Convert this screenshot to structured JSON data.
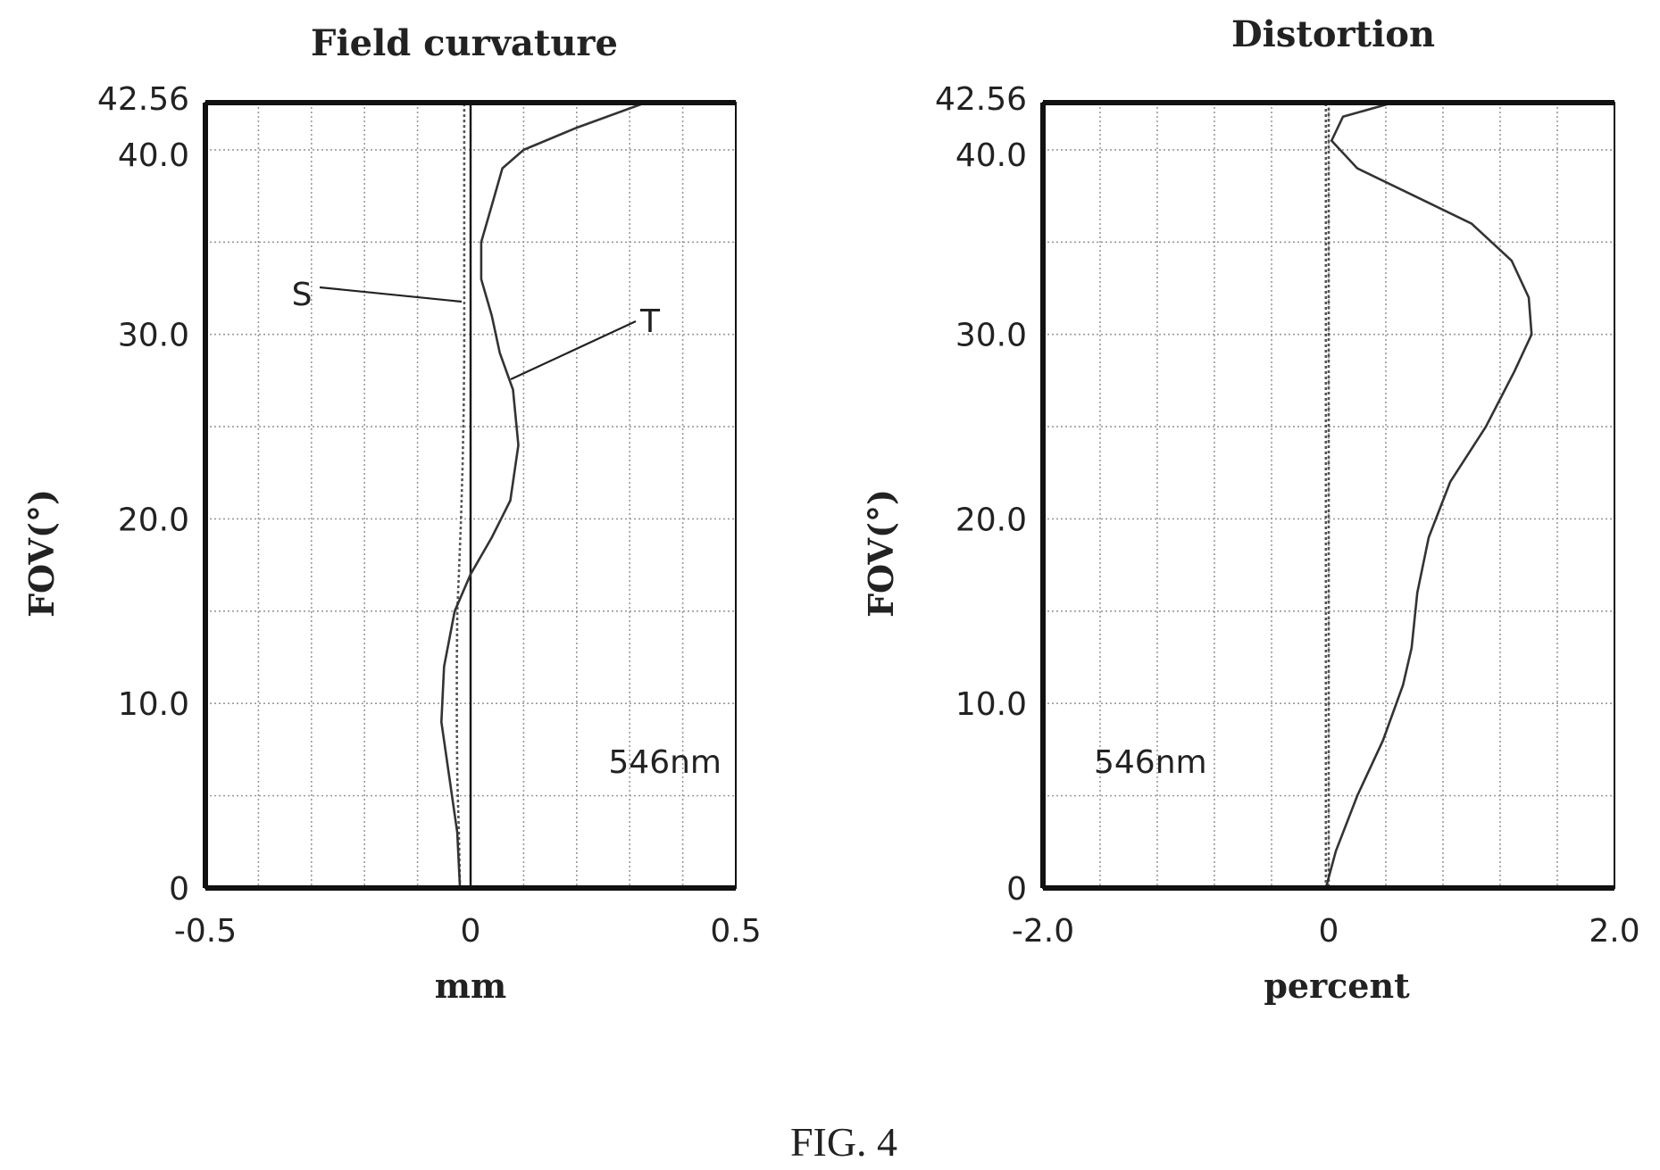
{
  "figure_label": "FIG. 4",
  "chart_data": [
    {
      "type": "line",
      "title": "Field curvature",
      "xlabel": "mm",
      "ylabel": "FOV(°)",
      "xlim": [
        -0.5,
        0.5
      ],
      "ylim": [
        0,
        42.56
      ],
      "x_ticks": [
        "-0.5",
        "0",
        "0.5"
      ],
      "y_ticks": [
        "0",
        "10.0",
        "20.0",
        "30.0",
        "40.0",
        "42.56"
      ],
      "annotation": "546nm",
      "grid": true,
      "series": [
        {
          "name": "S",
          "style": "dotted",
          "x": [
            -0.02,
            -0.022,
            -0.025,
            -0.026,
            -0.026,
            -0.025,
            -0.022,
            -0.018,
            -0.015,
            -0.013,
            -0.012,
            -0.012,
            -0.012,
            -0.012,
            -0.012,
            -0.012,
            -0.012
          ],
          "y": [
            0,
            3,
            6,
            9,
            12,
            15,
            17,
            20,
            23,
            26,
            29,
            32,
            35,
            38,
            40,
            42,
            42.56
          ]
        },
        {
          "name": "T",
          "style": "solid",
          "x": [
            -0.02,
            -0.025,
            -0.04,
            -0.055,
            -0.05,
            -0.03,
            0.0,
            0.04,
            0.075,
            0.09,
            0.08,
            0.055,
            0.04,
            0.02,
            0.02,
            0.04,
            0.06,
            0.1,
            0.2,
            0.33
          ],
          "y": [
            0,
            3,
            6,
            9,
            12,
            15,
            17,
            19,
            21,
            24,
            27,
            29,
            31,
            33,
            35,
            37,
            39,
            40,
            41.2,
            42.56
          ]
        }
      ],
      "labels": [
        "S",
        "T"
      ]
    },
    {
      "type": "line",
      "title": "Distortion",
      "xlabel": "percent",
      "ylabel": "FOV(°)",
      "xlim": [
        -2.0,
        2.0
      ],
      "ylim": [
        0,
        42.56
      ],
      "x_ticks": [
        "-2.0",
        "0",
        "2.0"
      ],
      "y_ticks": [
        "0",
        "10.0",
        "20.0",
        "30.0",
        "40.0",
        "42.56"
      ],
      "annotation": "546nm",
      "grid": true,
      "series": [
        {
          "name": "",
          "style": "solid",
          "x": [
            -0.02,
            0.05,
            0.2,
            0.38,
            0.52,
            0.58,
            0.62,
            0.7,
            0.85,
            1.1,
            1.3,
            1.42,
            1.4,
            1.28,
            1.0,
            0.6,
            0.2,
            0.02,
            0.1,
            0.45
          ],
          "y": [
            0,
            2,
            5,
            8,
            11,
            13,
            16,
            19,
            22,
            25,
            28,
            30,
            32,
            34,
            36,
            37.5,
            39,
            40.5,
            41.8,
            42.56
          ]
        },
        {
          "name": "",
          "style": "dotted",
          "x": [
            -0.02,
            -0.02
          ],
          "y": [
            0,
            42.56
          ]
        }
      ]
    }
  ]
}
